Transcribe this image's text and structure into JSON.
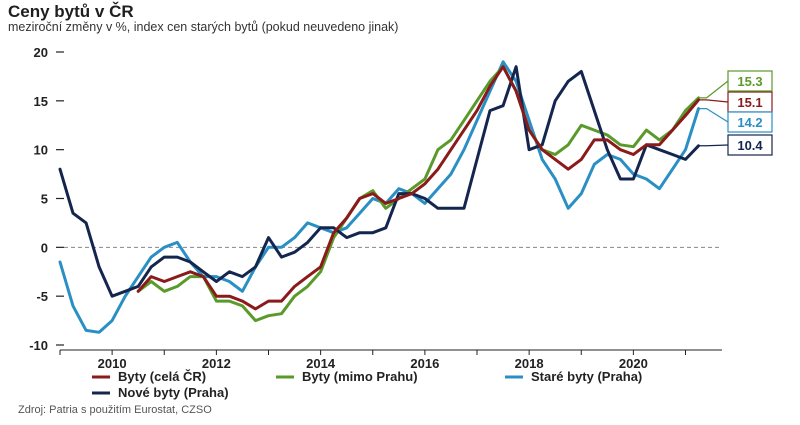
{
  "title": "Ceny bytů v ČR",
  "subtitle": "meziroční změny v %, index cen starých bytů (pokud neuvedeno jinak)",
  "source": "Zdroj: Patria s použitím Eurostat, CZSO",
  "colors": {
    "s1": "#8b1a1a",
    "s2": "#5a9a2a",
    "s3": "#2a8fc4",
    "s4": "#14254e"
  },
  "chart_data": {
    "type": "line",
    "ylim": [
      -10,
      20
    ],
    "xlim": [
      2009,
      2021.7
    ],
    "yticks": [
      -10,
      -5,
      0,
      5,
      10,
      15,
      20
    ],
    "xticks": [
      2010,
      2012,
      2014,
      2016,
      2018,
      2020
    ],
    "grid": false,
    "zero_line": "dashed",
    "legend_position": "bottom",
    "series": [
      {
        "name": "Byty (celá ČR)",
        "color_key": "s1",
        "end_label": "15.1",
        "points": [
          [
            2010.5,
            -4.5
          ],
          [
            2010.75,
            -3
          ],
          [
            2011,
            -3.5
          ],
          [
            2011.25,
            -3
          ],
          [
            2011.5,
            -2.5
          ],
          [
            2011.75,
            -3
          ],
          [
            2012,
            -5
          ],
          [
            2012.25,
            -5
          ],
          [
            2012.5,
            -5.5
          ],
          [
            2012.75,
            -6.3
          ],
          [
            2013,
            -5.5
          ],
          [
            2013.25,
            -5.5
          ],
          [
            2013.5,
            -4
          ],
          [
            2013.75,
            -3
          ],
          [
            2014,
            -2
          ],
          [
            2014.25,
            1.5
          ],
          [
            2014.5,
            3
          ],
          [
            2014.75,
            5
          ],
          [
            2015,
            5.5
          ],
          [
            2015.25,
            4.5
          ],
          [
            2015.5,
            5
          ],
          [
            2015.75,
            5.5
          ],
          [
            2016,
            6.5
          ],
          [
            2016.25,
            8
          ],
          [
            2016.5,
            10
          ],
          [
            2016.75,
            12
          ],
          [
            2017,
            14
          ],
          [
            2017.25,
            16.5
          ],
          [
            2017.5,
            18.5
          ],
          [
            2017.75,
            16
          ],
          [
            2018,
            12
          ],
          [
            2018.25,
            10
          ],
          [
            2018.5,
            9
          ],
          [
            2018.75,
            8
          ],
          [
            2019,
            9
          ],
          [
            2019.25,
            11
          ],
          [
            2019.5,
            11
          ],
          [
            2019.75,
            10
          ],
          [
            2020,
            9.5
          ],
          [
            2020.25,
            10.5
          ],
          [
            2020.5,
            10.5
          ],
          [
            2020.75,
            12
          ],
          [
            2021,
            13.5
          ],
          [
            2021.25,
            15.1
          ]
        ]
      },
      {
        "name": "Byty (mimo Prahu)",
        "color_key": "s2",
        "end_label": "15.3",
        "points": [
          [
            2010.5,
            -4.5
          ],
          [
            2010.75,
            -3.5
          ],
          [
            2011,
            -4.5
          ],
          [
            2011.25,
            -4
          ],
          [
            2011.5,
            -3
          ],
          [
            2011.75,
            -3
          ],
          [
            2012,
            -5.5
          ],
          [
            2012.25,
            -5.5
          ],
          [
            2012.5,
            -6
          ],
          [
            2012.75,
            -7.5
          ],
          [
            2013,
            -7
          ],
          [
            2013.25,
            -6.8
          ],
          [
            2013.5,
            -5
          ],
          [
            2013.75,
            -4
          ],
          [
            2014,
            -2.5
          ],
          [
            2014.25,
            1
          ],
          [
            2014.5,
            3
          ],
          [
            2014.75,
            5
          ],
          [
            2015,
            5.8
          ],
          [
            2015.25,
            4
          ],
          [
            2015.5,
            5
          ],
          [
            2015.75,
            6
          ],
          [
            2016,
            7
          ],
          [
            2016.25,
            10
          ],
          [
            2016.5,
            11
          ],
          [
            2016.75,
            13
          ],
          [
            2017,
            15
          ],
          [
            2017.25,
            17
          ],
          [
            2017.5,
            18.5
          ],
          [
            2017.75,
            16
          ],
          [
            2018,
            12
          ],
          [
            2018.25,
            10
          ],
          [
            2018.5,
            9.5
          ],
          [
            2018.75,
            10.5
          ],
          [
            2019,
            12.5
          ],
          [
            2019.25,
            12
          ],
          [
            2019.5,
            11.5
          ],
          [
            2019.75,
            10.5
          ],
          [
            2020,
            10.3
          ],
          [
            2020.25,
            12
          ],
          [
            2020.5,
            11
          ],
          [
            2020.75,
            12
          ],
          [
            2021,
            14
          ],
          [
            2021.25,
            15.3
          ]
        ]
      },
      {
        "name": "Staré byty (Praha)",
        "color_key": "s3",
        "end_label": "14.2",
        "points": [
          [
            2009,
            -1.5
          ],
          [
            2009.25,
            -6
          ],
          [
            2009.5,
            -8.5
          ],
          [
            2009.75,
            -8.7
          ],
          [
            2010,
            -7.5
          ],
          [
            2010.25,
            -5
          ],
          [
            2010.5,
            -3
          ],
          [
            2010.75,
            -1
          ],
          [
            2011,
            0
          ],
          [
            2011.25,
            0.5
          ],
          [
            2011.5,
            -1.5
          ],
          [
            2011.75,
            -3
          ],
          [
            2012,
            -3
          ],
          [
            2012.25,
            -3.5
          ],
          [
            2012.5,
            -4.5
          ],
          [
            2012.75,
            -2
          ],
          [
            2013,
            0
          ],
          [
            2013.25,
            0
          ],
          [
            2013.5,
            1
          ],
          [
            2013.75,
            2.5
          ],
          [
            2014,
            2
          ],
          [
            2014.25,
            1.5
          ],
          [
            2014.5,
            2
          ],
          [
            2014.75,
            3.5
          ],
          [
            2015,
            5
          ],
          [
            2015.25,
            4.5
          ],
          [
            2015.5,
            6
          ],
          [
            2015.75,
            5.5
          ],
          [
            2016,
            4.5
          ],
          [
            2016.25,
            6
          ],
          [
            2016.5,
            7.5
          ],
          [
            2016.75,
            10
          ],
          [
            2017,
            13
          ],
          [
            2017.25,
            16
          ],
          [
            2017.5,
            19
          ],
          [
            2017.75,
            17
          ],
          [
            2018,
            13
          ],
          [
            2018.25,
            9
          ],
          [
            2018.5,
            7
          ],
          [
            2018.75,
            4
          ],
          [
            2019,
            5.5
          ],
          [
            2019.25,
            8.5
          ],
          [
            2019.5,
            9.5
          ],
          [
            2019.75,
            9
          ],
          [
            2020,
            7.5
          ],
          [
            2020.25,
            7
          ],
          [
            2020.5,
            6
          ],
          [
            2020.75,
            8
          ],
          [
            2021,
            10
          ],
          [
            2021.25,
            14.2
          ]
        ]
      },
      {
        "name": "Nové byty (Praha)",
        "color_key": "s4",
        "end_label": "10.4",
        "points": [
          [
            2009,
            8
          ],
          [
            2009.25,
            3.5
          ],
          [
            2009.5,
            2.5
          ],
          [
            2009.75,
            -2
          ],
          [
            2010,
            -5
          ],
          [
            2010.25,
            -4.5
          ],
          [
            2010.5,
            -4
          ],
          [
            2010.75,
            -2
          ],
          [
            2011,
            -1
          ],
          [
            2011.25,
            -1
          ],
          [
            2011.5,
            -1.5
          ],
          [
            2011.75,
            -2.5
          ],
          [
            2012,
            -3.5
          ],
          [
            2012.25,
            -2.5
          ],
          [
            2012.5,
            -3
          ],
          [
            2012.75,
            -2
          ],
          [
            2013,
            1
          ],
          [
            2013.25,
            -1
          ],
          [
            2013.5,
            -0.5
          ],
          [
            2013.75,
            0.5
          ],
          [
            2014,
            2
          ],
          [
            2014.25,
            2
          ],
          [
            2014.5,
            1
          ],
          [
            2014.75,
            1.5
          ],
          [
            2015,
            1.5
          ],
          [
            2015.25,
            2
          ],
          [
            2015.5,
            5.5
          ],
          [
            2015.75,
            5.5
          ],
          [
            2016,
            5
          ],
          [
            2016.25,
            4
          ],
          [
            2016.5,
            4
          ],
          [
            2016.75,
            4
          ],
          [
            2017,
            9
          ],
          [
            2017.25,
            14
          ],
          [
            2017.5,
            14.5
          ],
          [
            2017.75,
            18.5
          ],
          [
            2018,
            10
          ],
          [
            2018.25,
            10.5
          ],
          [
            2018.5,
            15
          ],
          [
            2018.75,
            17
          ],
          [
            2019,
            18
          ],
          [
            2019.25,
            14
          ],
          [
            2019.5,
            10
          ],
          [
            2019.75,
            7
          ],
          [
            2020,
            7
          ],
          [
            2020.25,
            10.5
          ],
          [
            2020.5,
            10
          ],
          [
            2020.75,
            9.5
          ],
          [
            2021,
            9
          ],
          [
            2021.25,
            10.4
          ]
        ]
      }
    ]
  }
}
